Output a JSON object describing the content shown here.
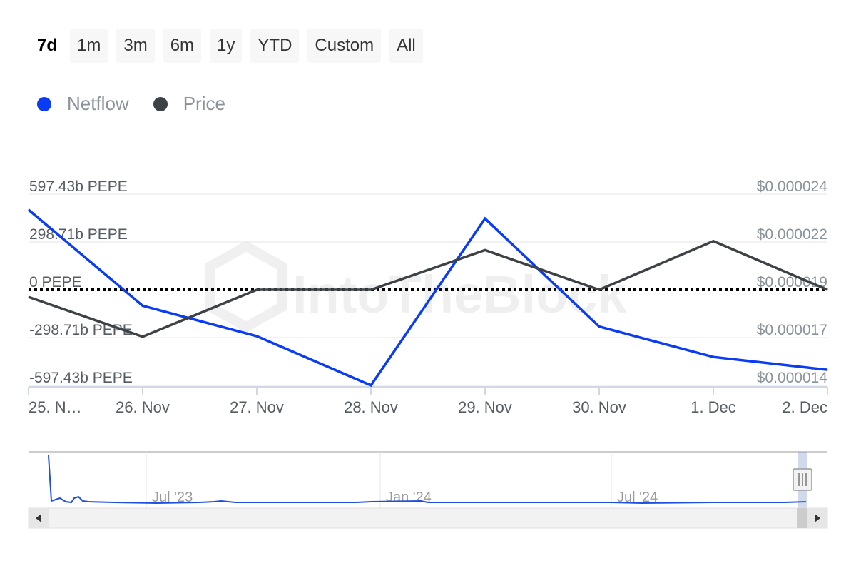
{
  "range_selector": {
    "buttons": [
      {
        "label": "7d",
        "active": true
      },
      {
        "label": "1m",
        "active": false
      },
      {
        "label": "3m",
        "active": false
      },
      {
        "label": "6m",
        "active": false
      },
      {
        "label": "1y",
        "active": false
      },
      {
        "label": "YTD",
        "active": false
      },
      {
        "label": "Custom",
        "active": false
      },
      {
        "label": "All",
        "active": false
      }
    ]
  },
  "legend": [
    {
      "name": "Netflow",
      "color": "#0a3cf5"
    },
    {
      "name": "Price",
      "color": "#3d4247"
    }
  ],
  "watermark": "IntoTheBlock",
  "chart_data": {
    "type": "line",
    "categories": [
      "25. Nov",
      "26. Nov",
      "27. Nov",
      "28. Nov",
      "29. Nov",
      "30. Nov",
      "1. Dec",
      "2. Dec"
    ],
    "x_tick_labels": [
      "25. N…",
      "26. Nov",
      "27. Nov",
      "28. Nov",
      "29. Nov",
      "30. Nov",
      "1. Dec",
      "2. Dec"
    ],
    "series": [
      {
        "name": "Netflow",
        "axis": "left",
        "color": "#0a3cf5",
        "unit": "b PEPE",
        "values": [
          500,
          -100,
          -290,
          -597,
          445,
          -230,
          -420,
          -500
        ]
      },
      {
        "name": "Price",
        "axis": "right",
        "color": "#3d4247",
        "unit": "$",
        "values": [
          1.88e-05,
          1.66e-05,
          1.92e-05,
          1.92e-05,
          2.14e-05,
          1.92e-05,
          2.19e-05,
          1.92e-05
        ]
      }
    ],
    "left_axis": {
      "ticks": [
        597.43,
        298.71,
        0,
        -298.71,
        -597.43
      ],
      "tick_labels": [
        "597.43b PEPE",
        "298.71b PEPE",
        "0 PEPE",
        "-298.71b PEPE",
        "-597.43b PEPE"
      ],
      "ylim": [
        -597.43,
        597.43
      ]
    },
    "right_axis": {
      "ticks": [
        2.4e-05,
        2.2e-05,
        1.9e-05,
        1.7e-05,
        1.4e-05
      ],
      "tick_labels": [
        "$0.000024",
        "$0.000022",
        "$0.000019",
        "$0.000017",
        "$0.000014"
      ],
      "ylim": [
        1.39e-05,
        2.45e-05
      ]
    },
    "zero_line": "dotted",
    "grid": true,
    "navigator": {
      "labels": [
        "Jul '23",
        "Jan '24",
        "Jul '24"
      ]
    }
  }
}
